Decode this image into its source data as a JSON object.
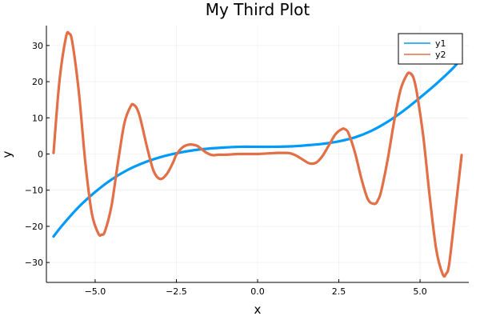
{
  "chart_data": {
    "type": "line",
    "title": "My Third Plot",
    "xlabel": "x",
    "ylabel": "y",
    "xlim": [
      -6.5,
      6.5
    ],
    "ylim": [
      -35.5,
      35.5
    ],
    "grid": true,
    "legend_position": "top-right",
    "xticks": [
      -5.0,
      -2.5,
      0.0,
      2.5,
      5.0
    ],
    "xtick_labels": [
      "−5.0",
      "−2.5",
      "0.0",
      "2.5",
      "5.0"
    ],
    "yticks": [
      -30,
      -20,
      -10,
      0,
      10,
      20,
      30
    ],
    "ytick_labels": [
      "−30",
      "−20",
      "−10",
      "0",
      "10",
      "20",
      "30"
    ],
    "series": [
      {
        "name": "y1",
        "color": "#009af9",
        "x": [
          -6.28,
          -6.0,
          -5.5,
          -5.0,
          -4.5,
          -4.0,
          -3.5,
          -3.0,
          -2.5,
          -2.0,
          -1.5,
          -1.0,
          -0.5,
          0.0,
          0.5,
          1.0,
          1.5,
          2.0,
          2.5,
          3.0,
          3.5,
          4.0,
          4.5,
          5.0,
          5.5,
          6.0,
          6.28
        ],
        "y": [
          -22.8,
          -19.6,
          -14.6,
          -10.5,
          -7.1,
          -4.4,
          -2.4,
          -0.9,
          0.2,
          1.0,
          1.5,
          1.8,
          2.0,
          2.0,
          2.0,
          2.1,
          2.4,
          2.8,
          3.5,
          4.6,
          6.4,
          8.9,
          12.0,
          15.6,
          19.4,
          23.6,
          26.5
        ]
      },
      {
        "name": "y2",
        "color": "#e26f46",
        "x": [
          -6.28,
          -6.1,
          -5.9,
          -5.8,
          -5.7,
          -5.5,
          -5.3,
          -5.1,
          -4.9,
          -4.8,
          -4.7,
          -4.5,
          -4.3,
          -4.1,
          -3.9,
          -3.8,
          -3.7,
          -3.6,
          -3.4,
          -3.2,
          -3.0,
          -2.8,
          -2.6,
          -2.5,
          -2.3,
          -2.1,
          -1.9,
          -1.8,
          -1.6,
          -1.4,
          -1.2,
          -1.0,
          -0.8,
          -0.6,
          -0.4,
          -0.2,
          0.0,
          0.2,
          0.4,
          0.6,
          0.8,
          1.0,
          1.2,
          1.4,
          1.6,
          1.8,
          2.0,
          2.2,
          2.4,
          2.6,
          2.7,
          2.8,
          3.0,
          3.2,
          3.4,
          3.6,
          3.7,
          3.8,
          4.0,
          4.2,
          4.4,
          4.6,
          4.7,
          4.8,
          4.9,
          5.1,
          5.3,
          5.5,
          5.7,
          5.8,
          5.9,
          6.1,
          6.28
        ],
        "y": [
          0.3,
          20.0,
          32.2,
          33.3,
          30.8,
          17.0,
          -2.5,
          -16.5,
          -22.0,
          -22.3,
          -21.4,
          -14.5,
          -2.5,
          8.5,
          13.3,
          13.5,
          12.3,
          9.5,
          1.8,
          -4.7,
          -6.9,
          -5.6,
          -2.3,
          -0.2,
          1.9,
          2.6,
          2.4,
          1.9,
          0.5,
          -0.3,
          -0.2,
          -0.2,
          -0.1,
          0.0,
          0.0,
          0.0,
          0.0,
          0.1,
          0.2,
          0.3,
          0.3,
          0.2,
          -0.5,
          -1.6,
          -2.6,
          -2.4,
          -0.5,
          2.5,
          5.5,
          6.9,
          6.8,
          5.7,
          0.3,
          -7.0,
          -12.6,
          -13.8,
          -12.8,
          -10.4,
          -1.7,
          8.9,
          17.8,
          22.0,
          22.3,
          21.0,
          17.0,
          4.8,
          -12.0,
          -26.5,
          -33.3,
          -33.1,
          -30.2,
          -14.5,
          -0.3
        ]
      }
    ]
  }
}
